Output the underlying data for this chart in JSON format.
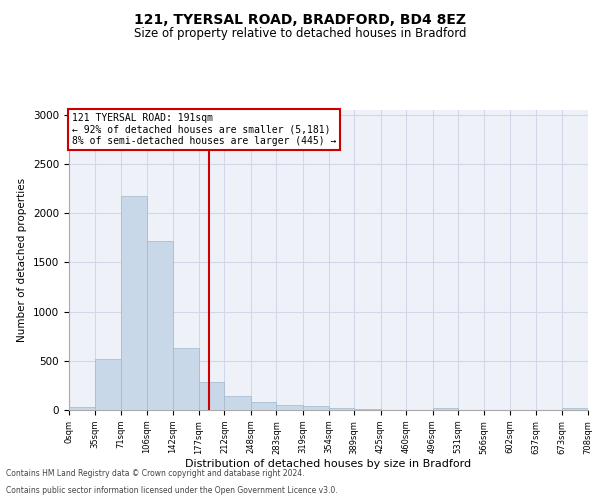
{
  "title1": "121, TYERSAL ROAD, BRADFORD, BD4 8EZ",
  "title2": "Size of property relative to detached houses in Bradford",
  "xlabel": "Distribution of detached houses by size in Bradford",
  "ylabel": "Number of detached properties",
  "bin_edges": [
    0,
    35,
    71,
    106,
    142,
    177,
    212,
    248,
    283,
    319,
    354,
    389,
    425,
    460,
    496,
    531,
    566,
    602,
    637,
    673,
    708
  ],
  "bar_heights": [
    30,
    520,
    2180,
    1720,
    635,
    280,
    145,
    80,
    55,
    40,
    18,
    8,
    5,
    3,
    20,
    2,
    1,
    1,
    1,
    25
  ],
  "bar_color": "#c8d8e8",
  "bar_edge_color": "#a0b8cc",
  "property_line_x": 191,
  "property_line_color": "#cc0000",
  "annotation_text": "121 TYERSAL ROAD: 191sqm\n← 92% of detached houses are smaller (5,181)\n8% of semi-detached houses are larger (445) →",
  "annotation_box_color": "#cc0000",
  "ylim": [
    0,
    3050
  ],
  "yticks": [
    0,
    500,
    1000,
    1500,
    2000,
    2500,
    3000
  ],
  "grid_color": "#d0d8e8",
  "bg_color": "#eef2f8",
  "footer1": "Contains HM Land Registry data © Crown copyright and database right 2024.",
  "footer2": "Contains public sector information licensed under the Open Government Licence v3.0."
}
